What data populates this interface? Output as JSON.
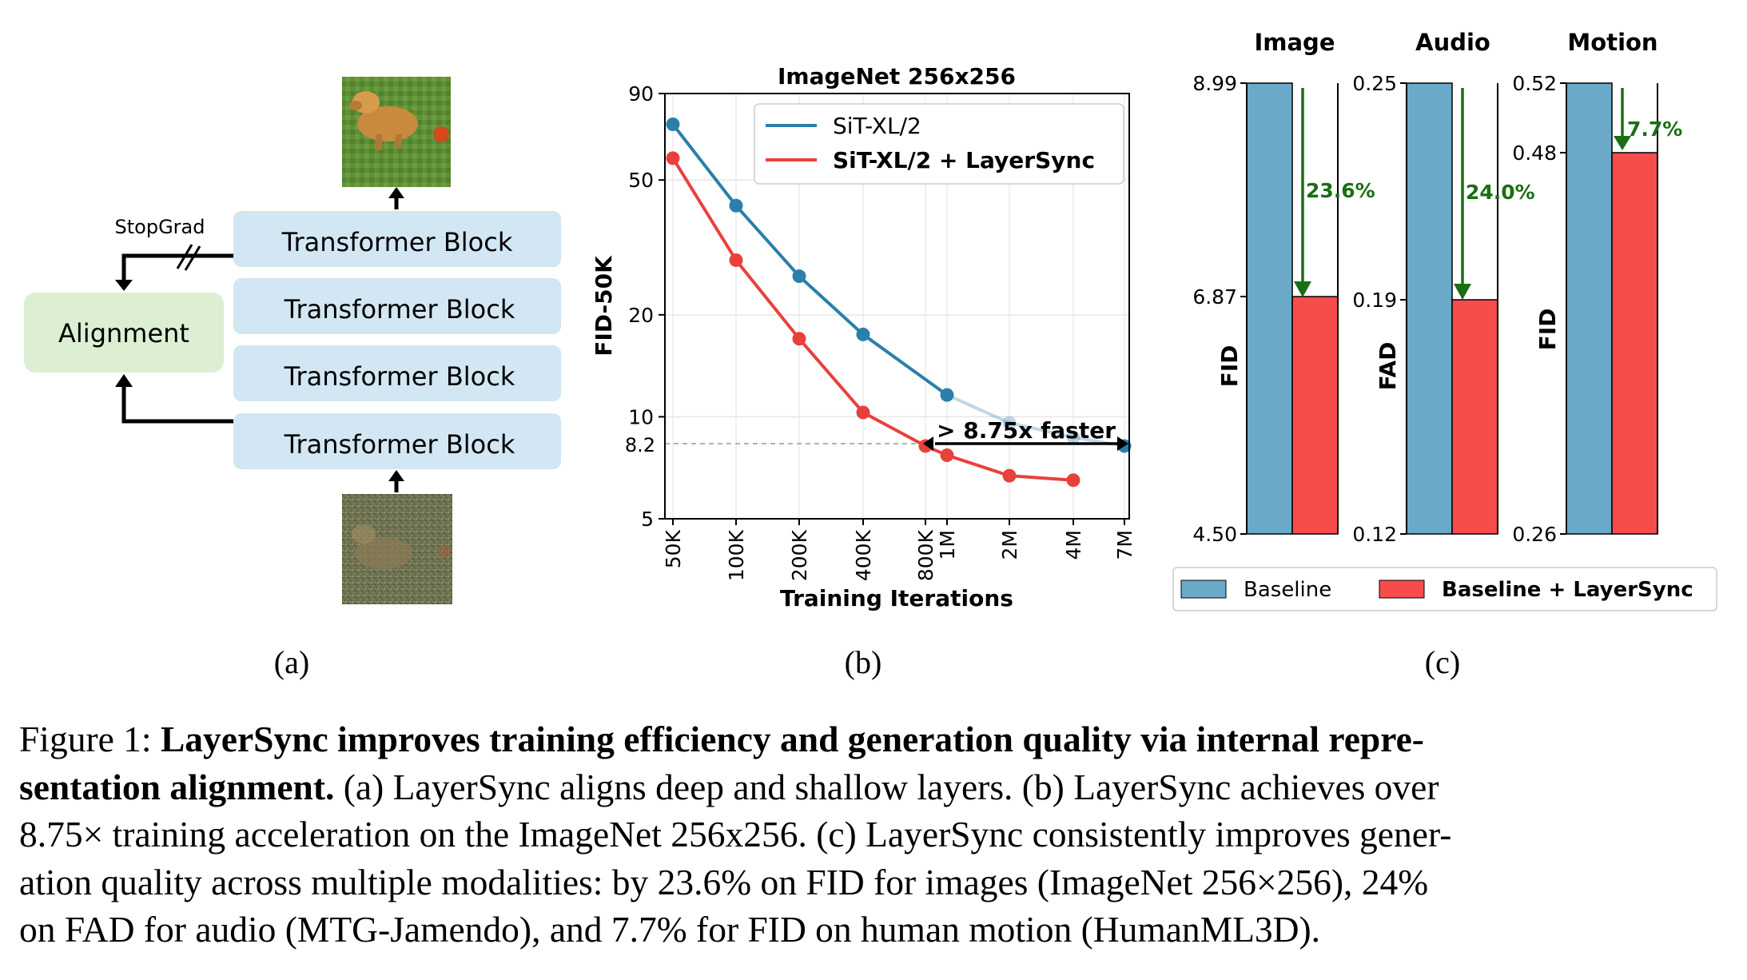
{
  "panel_a": {
    "blocks": [
      "Transformer Block",
      "Transformer Block",
      "Transformer Block",
      "Transformer Block"
    ],
    "alignment": "Alignment",
    "stopgrad": "StopGrad",
    "top_image": "clean-dog-image",
    "bottom_image": "noisy-dog-image",
    "colors": {
      "block": "#d2e6f3",
      "alignment": "#dcefd3"
    }
  },
  "panel_labels": {
    "a": "(a)",
    "b": "(b)",
    "c": "(c)"
  },
  "chart_data": [
    {
      "type": "line",
      "title": "ImageNet 256x256",
      "xlabel": "Training Iterations",
      "ylabel": "FID-50K",
      "yscale": "log",
      "ylim": [
        5,
        90
      ],
      "x_ticks": [
        "50K",
        "100K",
        "200K",
        "400K",
        "800K",
        "1M",
        "2M",
        "4M",
        "7M"
      ],
      "y_ticks": [
        "5",
        "10",
        "20",
        "50",
        "90"
      ],
      "ref_line": {
        "value": 8.2,
        "label": "8.2"
      },
      "annotation": "> 8.75x faster",
      "legend_position": "top-right",
      "grid": true,
      "series": [
        {
          "name": "SiT-XL/2",
          "color": "#2a7fab",
          "x": [
            "50K",
            "100K",
            "200K",
            "400K",
            "1M",
            "2M",
            "4M",
            "7M"
          ],
          "values": [
            73,
            42,
            26,
            17.5,
            11.6,
            9.6,
            8.7,
            8.2
          ]
        },
        {
          "name": "SiT-XL/2 + LayerSync",
          "color": "#e8413c",
          "x": [
            "50K",
            "100K",
            "200K",
            "400K",
            "800K",
            "1M",
            "2M",
            "4M"
          ],
          "values": [
            58,
            29,
            17,
            10.3,
            8.2,
            7.7,
            6.7,
            6.5
          ]
        }
      ]
    },
    {
      "type": "bar",
      "title": "Image",
      "ylabel": "FID",
      "y_ticks": [
        "8.99",
        "6.87",
        "4.50"
      ],
      "ylim": [
        4.5,
        8.99
      ],
      "categories": [
        "Baseline",
        "Baseline + LayerSync"
      ],
      "values": [
        8.99,
        6.87
      ],
      "improvement": "23.6%"
    },
    {
      "type": "bar",
      "title": "Audio",
      "ylabel": "FAD",
      "y_ticks": [
        "0.25",
        "0.19",
        "0.12"
      ],
      "ylim": [
        0.12,
        0.25
      ],
      "categories": [
        "Baseline",
        "Baseline + LayerSync"
      ],
      "values": [
        0.25,
        0.19
      ],
      "improvement": "24.0%"
    },
    {
      "type": "bar",
      "title": "Motion",
      "ylabel": "FID",
      "y_ticks": [
        "0.52",
        "0.48",
        "0.26"
      ],
      "ylim": [
        0.26,
        0.52
      ],
      "categories": [
        "Baseline",
        "Baseline + LayerSync"
      ],
      "values": [
        0.52,
        0.48
      ],
      "improvement": "7.7%"
    }
  ],
  "bar_legend": {
    "items": [
      "Baseline",
      "Baseline + LayerSync"
    ],
    "colors": [
      "#6aa9c8",
      "#f64c4c"
    ]
  },
  "caption": {
    "label": "Figure 1: ",
    "bold_1": "LayerSync improves training efficiency and generation quality via internal repre-",
    "bold_2": "sentation alignment.",
    "rest_2": " (a) LayerSync aligns deep and shallow layers.  (b) LayerSync achieves over",
    "line_3": "8.75× training acceleration on the ImageNet 256x256. (c) LayerSync consistently improves gener-",
    "line_4": "ation quality across multiple modalities:  by 23.6% on FID for images (ImageNet 256×256), 24%",
    "line_5": "on FAD for audio (MTG-Jamendo), and 7.7% for FID on human motion (HumanML3D)."
  }
}
